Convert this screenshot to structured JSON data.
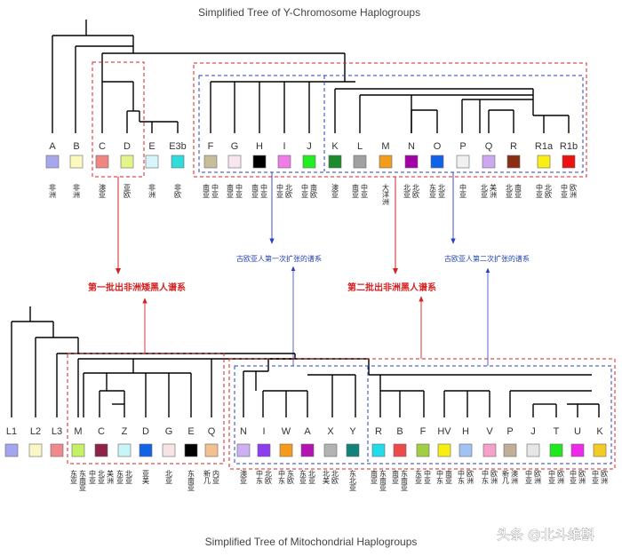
{
  "title_top": "Simplified Tree of Y-Chromosome Haplogroups",
  "title_bottom": "Simplified Tree of Mitochondrial Haplogroups",
  "watermark": "头条 @北斗维斟",
  "captions": {
    "first_wave": "第一批出非洲矮黑人谱系",
    "second_wave": "第二批出非洲黑人谱系",
    "paleo_euro_1": "古欧亚人第一次扩张的谱系",
    "paleo_euro_2": "古欧亚人第二次扩张的谱系"
  },
  "y_haplogroups": [
    {
      "label": "A",
      "color": "#a7a7ee",
      "region": [
        "非洲"
      ]
    },
    {
      "label": "B",
      "color": "#fafabc",
      "region": [
        "非洲"
      ]
    },
    {
      "label": "C",
      "color": "#f08682",
      "region": [
        "澳亚"
      ]
    },
    {
      "label": "D",
      "color": "#e6f58a",
      "region": [
        "亚欧"
      ]
    },
    {
      "label": "E",
      "color": "#d6f6fb",
      "region": [
        "非洲"
      ]
    },
    {
      "label": "E3b",
      "color": "#2fdcdc",
      "region": [
        "非欧"
      ]
    },
    {
      "label": "F",
      "color": "#c8bd9b",
      "region": [
        "南亚",
        "中亚"
      ]
    },
    {
      "label": "G",
      "color": "#f9e5ee",
      "region": [
        "南亚",
        "中亚"
      ]
    },
    {
      "label": "H",
      "color": "#000000",
      "region": [
        "南亚",
        "中亚"
      ]
    },
    {
      "label": "I",
      "color": "#ef7de6",
      "region": [
        "中亚",
        "北欧"
      ]
    },
    {
      "label": "J",
      "color": "#22ee22",
      "region": [
        "中亚",
        "南欧"
      ]
    },
    {
      "label": "K",
      "color": "#1d8a2c",
      "region": [
        "澳亚"
      ]
    },
    {
      "label": "L",
      "color": "#a0a0a0",
      "region": [
        "南亚",
        "中亚"
      ]
    },
    {
      "label": "M",
      "color": "#f29c1c",
      "region": [
        "大洋洲"
      ]
    },
    {
      "label": "N",
      "color": "#a300a8",
      "region": [
        "北亚",
        "北欧"
      ]
    },
    {
      "label": "O",
      "color": "#0f63e8",
      "region": [
        "东亚",
        "北亚"
      ]
    },
    {
      "label": "P",
      "color": "#f0f0f0",
      "region": [
        "中亚"
      ]
    },
    {
      "label": "Q",
      "color": "#cda8f1",
      "region": [
        "北亚",
        "美洲"
      ]
    },
    {
      "label": "R",
      "color": "#8a2d12",
      "region": [
        "北亚",
        "南亚"
      ]
    },
    {
      "label": "R1a",
      "color": "#f9ee16",
      "region": [
        "中亚",
        "北欧"
      ]
    },
    {
      "label": "R1b",
      "color": "#ee1111",
      "region": [
        "中亚",
        "欧洲"
      ]
    }
  ],
  "mt_haplogroups": [
    {
      "label": "L1",
      "color": "#a3a6ee",
      "region": []
    },
    {
      "label": "L2",
      "color": "#f9f8c4",
      "region": []
    },
    {
      "label": "L3",
      "color": "#f0898b",
      "region": []
    },
    {
      "label": "M",
      "color": "#c4f266",
      "region": [
        "东亚",
        "东南亚"
      ]
    },
    {
      "label": "C",
      "color": "#8e2247",
      "region": [
        "中亚",
        "北亚",
        "美洲"
      ]
    },
    {
      "label": "Z",
      "color": "#c7f5f8",
      "region": [
        "东亚",
        "北亚"
      ]
    },
    {
      "label": "D",
      "color": "#1363e6",
      "region": [
        "亚美"
      ]
    },
    {
      "label": "G",
      "color": "#f6e4e4",
      "region": [
        "北亚"
      ]
    },
    {
      "label": "E",
      "color": "#000000",
      "region": [
        "东南亚"
      ]
    },
    {
      "label": "Q",
      "color": "#f3c08f",
      "region": [
        "新几",
        "内亚"
      ]
    },
    {
      "label": "N",
      "color": "#cdb0f3",
      "region": [
        "澳亚"
      ]
    },
    {
      "label": "I",
      "color": "#8c3df0",
      "region": [
        "中东",
        "北欧"
      ]
    },
    {
      "label": "W",
      "color": "#f59a1b",
      "region": [
        "中东",
        "东欧"
      ]
    },
    {
      "label": "A",
      "color": "#b313b3",
      "region": [
        "东亚",
        "北亚"
      ]
    },
    {
      "label": "X",
      "color": "#b3b3b3",
      "region": [
        "北美",
        "北欧"
      ]
    },
    {
      "label": "Y",
      "color": "#13827a",
      "region": [
        "东北亚"
      ]
    },
    {
      "label": "R",
      "color": "#22dcea",
      "region": [
        "南亚",
        "东南亚"
      ]
    },
    {
      "label": "B",
      "color": "#ed4b4b",
      "region": [
        "南亚",
        "东南亚"
      ]
    },
    {
      "label": "F",
      "color": "#a1cf44",
      "region": [
        "东亚",
        "中亚"
      ]
    },
    {
      "label": "HV",
      "color": "#f8ee11",
      "region": [
        "中东",
        "南亚"
      ]
    },
    {
      "label": "H",
      "color": "#a1c3f3",
      "region": [
        "中东",
        "欧洲"
      ]
    },
    {
      "label": "V",
      "color": "#f4a2c9",
      "region": [
        "中东",
        "欧洲"
      ]
    },
    {
      "label": "P",
      "color": "#c2ae97",
      "region": [
        "新几",
        "澳洲"
      ]
    },
    {
      "label": "J",
      "color": "#e6e6e6",
      "region": [
        "中亚",
        "欧洲"
      ]
    },
    {
      "label": "T",
      "color": "#1ee81e",
      "region": [
        "中亚",
        "欧洲"
      ]
    },
    {
      "label": "U",
      "color": "#ef29e9",
      "region": [
        "中亚",
        "欧洲"
      ]
    },
    {
      "label": "K",
      "color": "#f3cc23",
      "region": [
        "中亚",
        "欧洲"
      ]
    }
  ]
}
